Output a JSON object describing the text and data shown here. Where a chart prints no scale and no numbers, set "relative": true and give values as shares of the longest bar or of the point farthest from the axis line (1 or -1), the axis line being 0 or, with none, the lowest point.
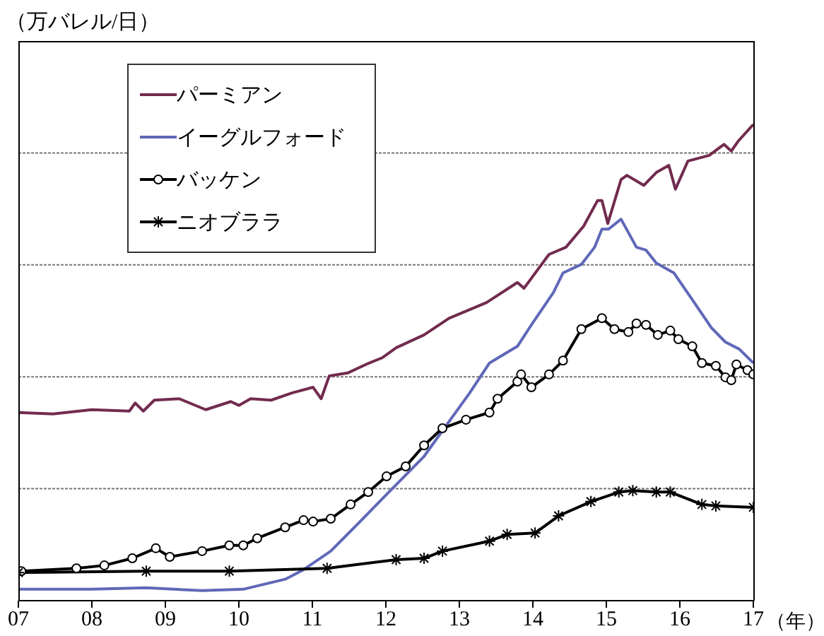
{
  "chart_data": {
    "type": "line",
    "ylabel": "（万バレル/日）",
    "xlabel": "（年）",
    "relative": true,
    "grid": "y",
    "legend": "top left",
    "xlim": [
      2007,
      2017
    ],
    "xticks": [
      {
        "value": 2007,
        "label": "07"
      },
      {
        "value": 2008,
        "label": "08"
      },
      {
        "value": 2009,
        "label": "09"
      },
      {
        "value": 2010,
        "label": "10"
      },
      {
        "value": 2011,
        "label": "11"
      },
      {
        "value": 2012,
        "label": "12"
      },
      {
        "value": 2013,
        "label": "13"
      },
      {
        "value": 2014,
        "label": "14"
      },
      {
        "value": 2015,
        "label": "15"
      },
      {
        "value": 2016,
        "label": "16"
      },
      {
        "value": 2017,
        "label": "17"
      }
    ],
    "series": [
      {
        "name": "パーミアン",
        "color": "#722b4f",
        "marker": "none",
        "x": [
          2007.0,
          2007.47,
          2008.0,
          2008.51,
          2008.59,
          2008.7,
          2008.85,
          2009.19,
          2009.55,
          2009.89,
          2010.0,
          2010.16,
          2010.44,
          2010.72,
          2011.01,
          2011.12,
          2011.23,
          2011.48,
          2011.73,
          2011.95,
          2012.14,
          2012.52,
          2012.86,
          2013.37,
          2013.79,
          2013.88,
          2014.22,
          2014.45,
          2014.69,
          2014.88,
          2014.94,
          2015.02,
          2015.2,
          2015.28,
          2015.51,
          2015.68,
          2015.85,
          2015.94,
          2016.11,
          2016.4,
          2016.6,
          2016.7,
          2016.79,
          2017.0
        ],
        "values": [
          0.395,
          0.392,
          0.401,
          0.398,
          0.415,
          0.398,
          0.421,
          0.424,
          0.401,
          0.418,
          0.41,
          0.424,
          0.421,
          0.436,
          0.448,
          0.424,
          0.472,
          0.478,
          0.496,
          0.51,
          0.531,
          0.558,
          0.593,
          0.626,
          0.668,
          0.656,
          0.727,
          0.742,
          0.786,
          0.84,
          0.84,
          0.792,
          0.884,
          0.893,
          0.872,
          0.899,
          0.914,
          0.864,
          0.923,
          0.935,
          0.958,
          0.944,
          0.964,
          1
        ]
      },
      {
        "name": "イーグルフォード",
        "color": "#6068b8",
        "marker": "none",
        "x": [
          2007.0,
          2008.0,
          2008.74,
          2009.5,
          2010.06,
          2010.63,
          2010.88,
          2011.25,
          2011.63,
          2012.01,
          2012.52,
          2013.14,
          2013.41,
          2013.79,
          2013.98,
          2014.28,
          2014.41,
          2014.66,
          2014.84,
          2014.94,
          2015.03,
          2015.2,
          2015.41,
          2015.54,
          2015.68,
          2015.92,
          2016.17,
          2016.43,
          2016.62,
          2016.81,
          2017.0
        ],
        "values": [
          0.024,
          0.024,
          0.027,
          0.021,
          0.024,
          0.045,
          0.065,
          0.104,
          0.163,
          0.223,
          0.303,
          0.436,
          0.499,
          0.534,
          0.579,
          0.647,
          0.688,
          0.706,
          0.742,
          0.78,
          0.78,
          0.801,
          0.742,
          0.736,
          0.709,
          0.688,
          0.632,
          0.573,
          0.543,
          0.528,
          0.499
        ]
      },
      {
        "name": "バッケン",
        "color": "#000000",
        "marker": "circle",
        "x": [
          2007.04,
          2007.79,
          2008.17,
          2008.55,
          2008.87,
          2009.06,
          2009.5,
          2009.87,
          2010.06,
          2010.25,
          2010.63,
          2010.88,
          2011.01,
          2011.25,
          2011.52,
          2011.76,
          2012.01,
          2012.27,
          2012.52,
          2012.77,
          2013.09,
          2013.41,
          2013.52,
          2013.79,
          2013.84,
          2013.98,
          2014.22,
          2014.41,
          2014.66,
          2014.94,
          2015.11,
          2015.3,
          2015.41,
          2015.54,
          2015.7,
          2015.87,
          2015.98,
          2016.17,
          2016.3,
          2016.49,
          2016.62,
          2016.7,
          2016.77,
          2016.92,
          2017.0
        ],
        "values": [
          0.062,
          0.068,
          0.074,
          0.089,
          0.11,
          0.092,
          0.104,
          0.116,
          0.116,
          0.131,
          0.154,
          0.169,
          0.166,
          0.172,
          0.202,
          0.228,
          0.261,
          0.282,
          0.326,
          0.362,
          0.38,
          0.395,
          0.424,
          0.46,
          0.475,
          0.448,
          0.475,
          0.504,
          0.57,
          0.593,
          0.57,
          0.564,
          0.582,
          0.579,
          0.558,
          0.567,
          0.549,
          0.534,
          0.499,
          0.493,
          0.469,
          0.463,
          0.496,
          0.484,
          0.475
        ]
      },
      {
        "name": "ニオブララ",
        "color": "#000000",
        "marker": "cross",
        "x": [
          2007.0,
          2008.74,
          2009.87,
          2011.2,
          2012.14,
          2012.52,
          2012.77,
          2013.41,
          2013.65,
          2014.03,
          2014.35,
          2014.79,
          2015.17,
          2015.36,
          2015.68,
          2015.87,
          2016.3,
          2016.49,
          2017.0
        ],
        "values": [
          0.059,
          0.062,
          0.062,
          0.068,
          0.086,
          0.089,
          0.104,
          0.125,
          0.139,
          0.142,
          0.178,
          0.208,
          0.228,
          0.231,
          0.228,
          0.228,
          0.202,
          0.199,
          0.196
        ]
      }
    ]
  }
}
